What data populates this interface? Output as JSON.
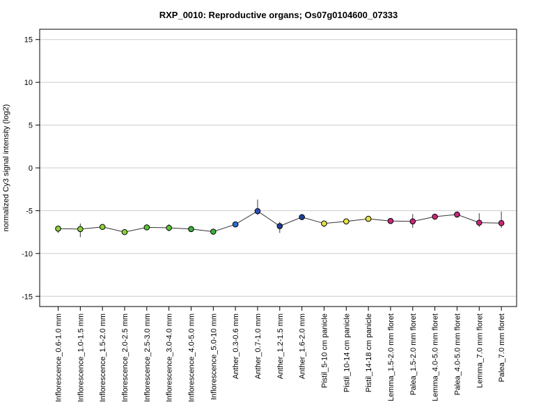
{
  "chart_data": {
    "type": "line",
    "title": "RXP_0010: Reproductive organs; Os07g0104600_07333",
    "xlabel": "",
    "ylabel": "normalized Cy3 signal intensity (log2)",
    "ylim": [
      -16.2,
      16.2
    ],
    "yticks": [
      -15,
      -10,
      -5,
      0,
      5,
      10,
      15
    ],
    "grid": true,
    "legend": "none",
    "line_color": "#333333",
    "categories": [
      "Inflorescence_0.6-1.0 mm",
      "Inflorescence_1.0-1.5 mm",
      "Inflorescence_1.5-2.0 mm",
      "Inflorescence_2.0-2.5 mm",
      "Inflorescence_2.5-3.0 mm",
      "Inflorescence_3.0-4.0 mm",
      "Inflorescence_4.0-5.0 mm",
      "Inflorescence_5.0-10 mm",
      "Anther_0.3-0.6 mm",
      "Anther_0.7-1.0 mm",
      "Anther_1.2-1.5 mm",
      "Anther_1.6-2.0 mm",
      "Pistil_5-10 cm panicle",
      "Pistil_10-14 cm panicle",
      "Pistil_14-18 cm panicle",
      "Lemma_1.5-2.0 mm floret",
      "Palea_1.5-2.0 mm floret",
      "Lemma_4.0-5.0 mm floret",
      "Palea_4.0-5.0 mm floret",
      "Lemma_7.0 mm floret",
      "Palea_7.0 mm floret"
    ],
    "values": [
      -7.1,
      -7.15,
      -6.9,
      -7.5,
      -6.95,
      -7.0,
      -7.15,
      -7.45,
      -6.6,
      -5.05,
      -6.8,
      -5.75,
      -6.5,
      -6.25,
      -5.95,
      -6.2,
      -6.25,
      -5.7,
      -5.45,
      -6.4,
      -6.45
    ],
    "error": [
      [
        -7.6,
        -6.8
      ],
      [
        -8.1,
        -6.5
      ],
      [
        -7.1,
        -6.7
      ],
      [
        -7.7,
        -7.3
      ],
      [
        -7.1,
        -6.8
      ],
      [
        -7.4,
        -6.6
      ],
      [
        -7.3,
        -7.0
      ],
      [
        -7.8,
        -7.2
      ],
      [
        -6.7,
        -6.5
      ],
      [
        -5.5,
        -3.7
      ],
      [
        -7.6,
        -6.3
      ],
      [
        -5.9,
        -5.6
      ],
      [
        -6.9,
        -6.2
      ],
      [
        -6.4,
        -6.1
      ],
      [
        -6.1,
        -5.8
      ],
      [
        -6.3,
        -6.1
      ],
      [
        -7.0,
        -5.4
      ],
      [
        -5.9,
        -5.5
      ],
      [
        -5.8,
        -5.1
      ],
      [
        -6.9,
        -5.3
      ],
      [
        -7.0,
        -5.1
      ]
    ],
    "point_colors": [
      "#8ccf3a",
      "#8ccf3a",
      "#8ccf3a",
      "#8ccf3a",
      "#5cc33a",
      "#5cc33a",
      "#3ab03a",
      "#3ab03a",
      "#2a6fd0",
      "#2a4fb8",
      "#1f3f9a",
      "#1f3f9a",
      "#e6e04a",
      "#e6e04a",
      "#e6e04a",
      "#c8287a",
      "#c8287a",
      "#c8287a",
      "#c8287a",
      "#c8287a",
      "#c8287a"
    ]
  }
}
